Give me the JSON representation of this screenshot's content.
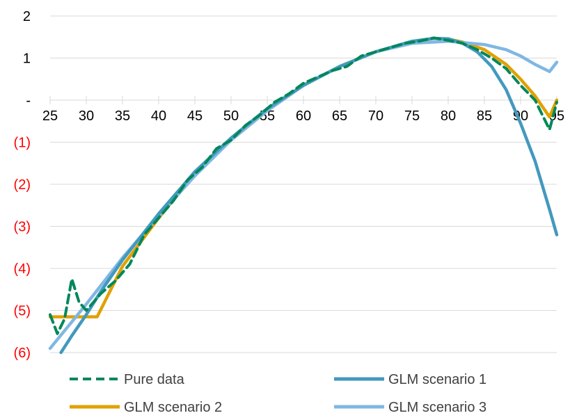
{
  "chart_data": {
    "type": "line",
    "title": "",
    "xlabel": "",
    "ylabel": "",
    "x_ticks": [
      25,
      30,
      35,
      40,
      45,
      50,
      55,
      60,
      65,
      70,
      75,
      80,
      85,
      90,
      95
    ],
    "y_ticks": [
      2,
      1,
      0,
      -1,
      -2,
      -3,
      -4,
      -5,
      -6
    ],
    "y_tick_labels": [
      "2",
      "1",
      "-",
      "(1)",
      "(2)",
      "(3)",
      "(4)",
      "(5)",
      "(6)"
    ],
    "xlim": [
      25,
      95
    ],
    "ylim": [
      -6,
      2
    ],
    "grid": "horizontal",
    "legend_position": "bottom",
    "colors": {
      "negative_tick_labels": "#ff0000",
      "positive_tick_labels": "#000000",
      "gridlines": "#d9d9d9"
    },
    "series": [
      {
        "name": "Pure data",
        "color": "#00875a",
        "style": "dashed",
        "x": [
          25,
          26,
          27,
          28,
          29,
          30,
          32,
          34,
          36,
          38,
          40,
          42,
          44,
          46,
          48,
          50,
          52,
          54,
          56,
          58,
          60,
          62,
          64,
          66,
          68,
          70,
          72,
          74,
          76,
          78,
          80,
          82,
          84,
          86,
          88,
          90,
          92,
          94,
          95
        ],
        "y": [
          -5.1,
          -5.55,
          -5.2,
          -4.25,
          -4.8,
          -5.0,
          -4.6,
          -4.3,
          -3.9,
          -3.2,
          -2.8,
          -2.4,
          -1.9,
          -1.6,
          -1.15,
          -0.95,
          -0.6,
          -0.35,
          -0.05,
          0.15,
          0.4,
          0.55,
          0.7,
          0.8,
          1.05,
          1.15,
          1.25,
          1.35,
          1.4,
          1.48,
          1.42,
          1.35,
          1.2,
          1.0,
          0.75,
          0.35,
          0.0,
          -0.7,
          -0.05
        ]
      },
      {
        "name": "GLM scenario 1",
        "color": "#4399bd",
        "style": "solid",
        "x": [
          26.5,
          28,
          30,
          32,
          35,
          40,
          45,
          50,
          55,
          60,
          65,
          70,
          75,
          78,
          80,
          82,
          84,
          86,
          88,
          90,
          92,
          94,
          95
        ],
        "y": [
          -6.0,
          -5.6,
          -5.1,
          -4.55,
          -3.8,
          -2.7,
          -1.7,
          -0.9,
          -0.2,
          0.35,
          0.8,
          1.15,
          1.4,
          1.47,
          1.46,
          1.35,
          1.15,
          0.8,
          0.25,
          -0.55,
          -1.45,
          -2.6,
          -3.2
        ]
      },
      {
        "name": "GLM scenario 2",
        "color": "#e0a100",
        "style": "solid",
        "x": [
          25,
          31.5,
          35,
          40,
          45,
          50,
          55,
          60,
          65,
          70,
          75,
          78,
          80,
          82,
          85,
          88,
          90,
          92,
          94,
          95
        ],
        "y": [
          -5.15,
          -5.15,
          -3.95,
          -2.8,
          -1.75,
          -0.95,
          -0.25,
          0.35,
          0.8,
          1.15,
          1.38,
          1.47,
          1.45,
          1.38,
          1.2,
          0.85,
          0.5,
          0.1,
          -0.4,
          0.0
        ]
      },
      {
        "name": "GLM scenario 3",
        "color": "#80b7e3",
        "style": "solid",
        "x": [
          25,
          30,
          35,
          40,
          45,
          50,
          55,
          60,
          65,
          70,
          75,
          80,
          85,
          88,
          90,
          92,
          94,
          95
        ],
        "y": [
          -5.9,
          -4.85,
          -3.75,
          -2.75,
          -1.8,
          -0.95,
          -0.25,
          0.35,
          0.8,
          1.15,
          1.35,
          1.4,
          1.32,
          1.2,
          1.05,
          0.85,
          0.68,
          0.9
        ]
      }
    ]
  }
}
